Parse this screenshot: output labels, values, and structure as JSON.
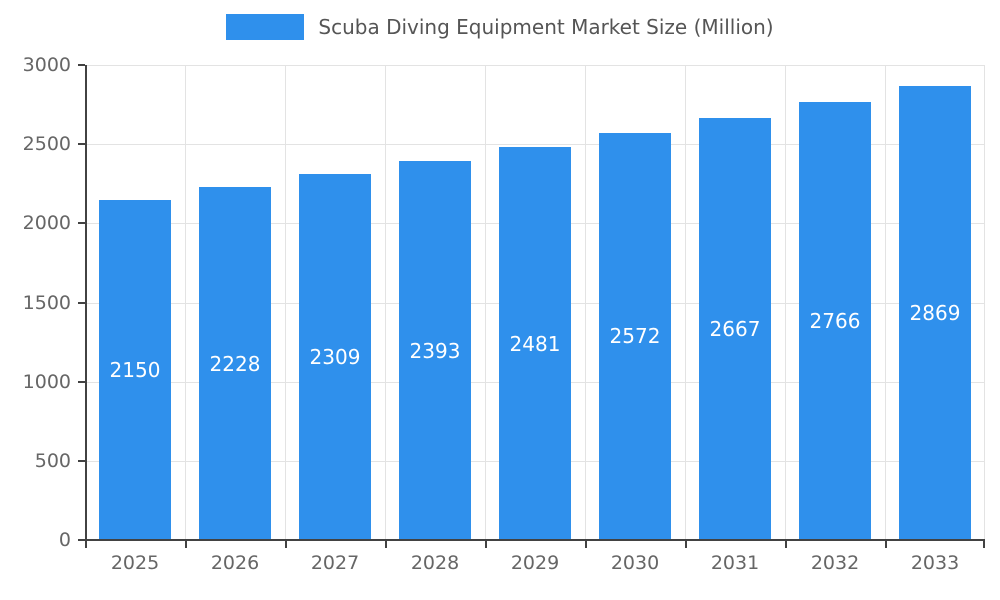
{
  "chart_data": {
    "type": "bar",
    "title": "Scuba Diving Equipment Market Size (Million)",
    "categories": [
      "2025",
      "2026",
      "2027",
      "2028",
      "2029",
      "2030",
      "2031",
      "2032",
      "2033"
    ],
    "values": [
      2150,
      2228,
      2309,
      2393,
      2481,
      2572,
      2667,
      2766,
      2869
    ],
    "xlabel": "",
    "ylabel": "",
    "ylim": [
      0,
      3000
    ],
    "yticks": [
      0,
      500,
      1000,
      1500,
      2000,
      2500,
      3000
    ],
    "grid": true,
    "legend_position": "top-center",
    "value_labels": "inside-center",
    "colors": {
      "bar": "#2F90EC",
      "value_label_text": "#ffffff",
      "axis_text": "#666666",
      "title_text": "#555555",
      "gridline": "#e3e3e3",
      "axis_line": "#424242",
      "background": "#ffffff"
    }
  }
}
